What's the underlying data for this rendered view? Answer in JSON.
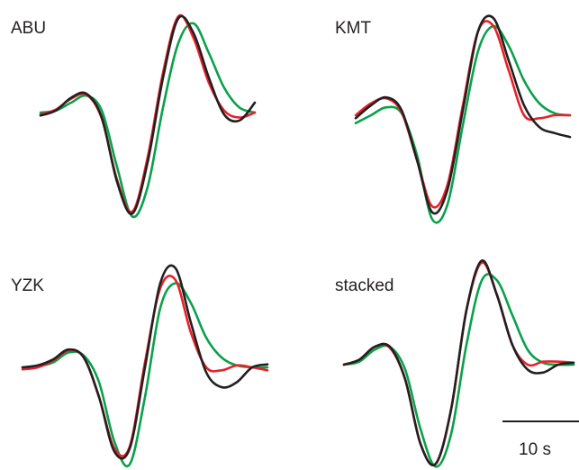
{
  "chart_data": [
    {
      "type": "line",
      "title": "ABU",
      "x": [
        0,
        2,
        4,
        6,
        8,
        10,
        12,
        14,
        16,
        18,
        20,
        22,
        24,
        26,
        28
      ],
      "series": [
        {
          "color": "#0aa14b",
          "values": [
            0.0,
            0.02,
            0.1,
            0.17,
            0.02,
            -0.55,
            -1.05,
            -0.75,
            0.05,
            0.7,
            0.9,
            0.6,
            0.25,
            0.05,
            0.0
          ]
        },
        {
          "color": "#e8212b",
          "values": [
            -0.02,
            0.03,
            0.14,
            0.18,
            -0.06,
            -0.68,
            -1.0,
            -0.45,
            0.4,
            0.97,
            0.75,
            0.3,
            0.02,
            -0.05,
            0.0
          ]
        },
        {
          "color": "#231f20",
          "values": [
            -0.03,
            0.02,
            0.15,
            0.19,
            -0.05,
            -0.7,
            -1.02,
            -0.5,
            0.35,
            0.95,
            0.8,
            0.35,
            -0.02,
            -0.08,
            0.1
          ]
        }
      ]
    },
    {
      "type": "line",
      "title": "KMT",
      "x": [
        0,
        2,
        4,
        6,
        8,
        10,
        12,
        14,
        16,
        18,
        20,
        22,
        24,
        26,
        28
      ],
      "series": [
        {
          "color": "#0aa14b",
          "values": [
            -0.08,
            0.0,
            0.08,
            0.02,
            -0.4,
            -1.05,
            -0.9,
            -0.1,
            0.65,
            0.9,
            0.7,
            0.35,
            0.12,
            0.02,
            0.0
          ]
        },
        {
          "color": "#e8212b",
          "values": [
            0.0,
            0.12,
            0.17,
            0.03,
            -0.45,
            -0.92,
            -0.7,
            0.1,
            0.85,
            0.9,
            0.45,
            0.0,
            -0.03,
            0.0,
            0.0
          ]
        },
        {
          "color": "#231f20",
          "values": [
            -0.03,
            0.1,
            0.18,
            0.05,
            -0.45,
            -0.98,
            -0.75,
            0.05,
            0.85,
            0.98,
            0.55,
            0.1,
            -0.12,
            -0.18,
            -0.22
          ]
        }
      ]
    },
    {
      "type": "line",
      "title": "YZK",
      "x": [
        0,
        2,
        4,
        6,
        8,
        10,
        12,
        14,
        16,
        18,
        20,
        22,
        24,
        26,
        28,
        30,
        32
      ],
      "series": [
        {
          "color": "#0aa14b",
          "values": [
            0.0,
            0.01,
            0.05,
            0.15,
            0.12,
            -0.15,
            -0.75,
            -0.98,
            -0.3,
            0.6,
            0.85,
            0.65,
            0.3,
            0.1,
            0.02,
            0.0,
            0.0
          ]
        },
        {
          "color": "#e8212b",
          "values": [
            -0.02,
            0.0,
            0.07,
            0.17,
            0.1,
            -0.3,
            -0.82,
            -0.8,
            0.05,
            0.8,
            0.88,
            0.35,
            0.0,
            -0.03,
            0.02,
            0.0,
            -0.03
          ]
        },
        {
          "color": "#231f20",
          "values": [
            0.0,
            0.02,
            0.08,
            0.18,
            0.1,
            -0.3,
            -0.85,
            -0.82,
            0.0,
            0.85,
            1.0,
            0.45,
            -0.05,
            -0.2,
            -0.15,
            0.0,
            0.03
          ]
        }
      ]
    },
    {
      "type": "line",
      "title": "stacked",
      "x": [
        0,
        2,
        4,
        6,
        8,
        10,
        12,
        14,
        16,
        18,
        20,
        22,
        24,
        26,
        28,
        30
      ],
      "series": [
        {
          "color": "#0aa14b",
          "values": [
            0.0,
            0.03,
            0.15,
            0.18,
            -0.05,
            -0.65,
            -1.03,
            -0.7,
            0.2,
            0.85,
            0.85,
            0.5,
            0.15,
            0.02,
            0.0,
            0.0
          ]
        },
        {
          "color": "#e8212b",
          "values": [
            0.0,
            0.05,
            0.18,
            0.17,
            -0.15,
            -0.8,
            -1.0,
            -0.45,
            0.55,
            1.03,
            0.7,
            0.2,
            0.0,
            0.03,
            0.03,
            0.02
          ]
        },
        {
          "color": "#231f20",
          "values": [
            0.0,
            0.05,
            0.18,
            0.18,
            -0.15,
            -0.8,
            -1.0,
            -0.45,
            0.55,
            1.05,
            0.7,
            0.2,
            -0.05,
            -0.08,
            0.0,
            0.02
          ]
        }
      ]
    }
  ],
  "scale_bar": {
    "value": 10,
    "label": "10 s"
  }
}
